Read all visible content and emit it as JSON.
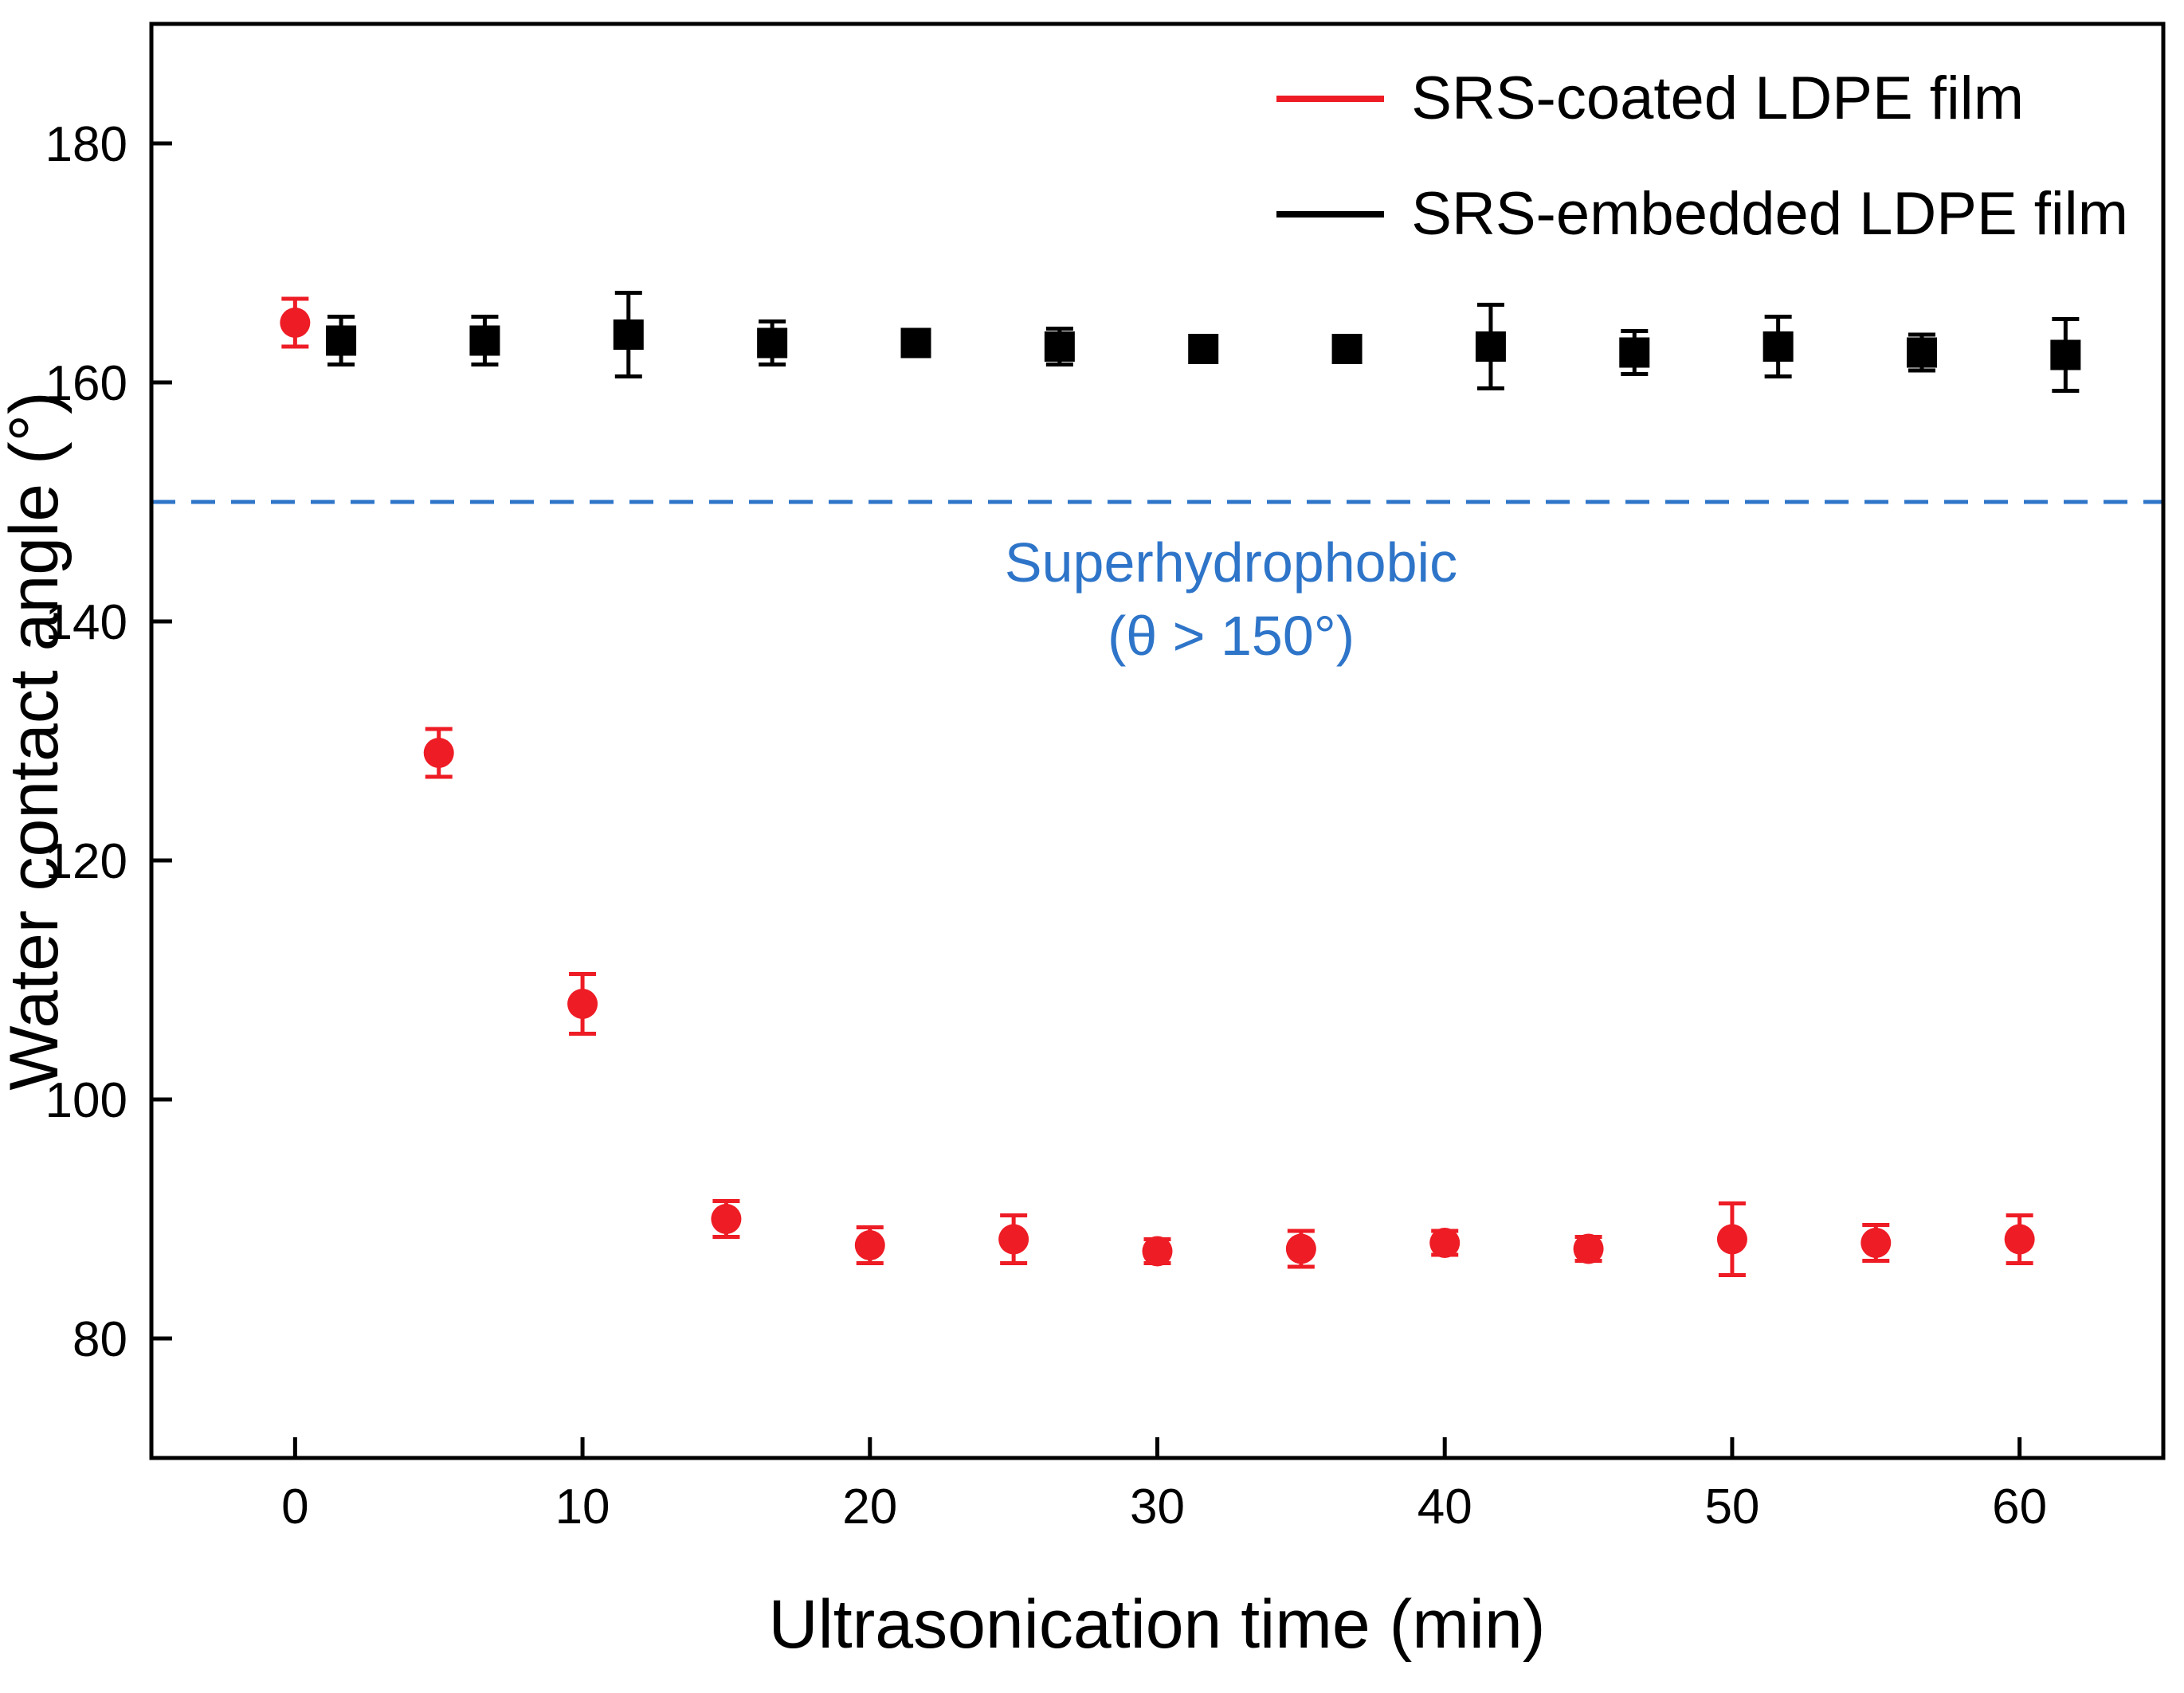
{
  "chart_data": {
    "type": "scatter",
    "title": "",
    "xlabel": "Ultrasonication time (min)",
    "ylabel": "Water contact angle (°)",
    "xlim": [
      -5,
      65
    ],
    "ylim": [
      70,
      190
    ],
    "xticks": [
      0,
      10,
      20,
      30,
      40,
      50,
      60
    ],
    "yticks": [
      80,
      100,
      120,
      140,
      160,
      180
    ],
    "grid": false,
    "legend_position": "top-right",
    "x": [
      0,
      5,
      10,
      15,
      20,
      25,
      30,
      35,
      40,
      45,
      50,
      55,
      60
    ],
    "series": [
      {
        "name": "SRS-coated LDPE film",
        "color": "#ee1c25",
        "marker": "circle",
        "x_offset": 0,
        "values": [
          165,
          129,
          108,
          90,
          87.8,
          88.3,
          87.3,
          87.5,
          88,
          87.5,
          88.3,
          88,
          88.3
        ],
        "errors": [
          2,
          2,
          2.5,
          1.5,
          1.5,
          2,
          1,
          1.5,
          1,
          1,
          3,
          1.5,
          2
        ]
      },
      {
        "name": "SRS-embedded LDPE film",
        "color": "#000000",
        "marker": "square",
        "x_offset": 1.6,
        "values": [
          163.5,
          163.5,
          164,
          163.3,
          163.3,
          163,
          162.8,
          162.8,
          163,
          162.5,
          163,
          162.5,
          162.3
        ],
        "errors": [
          2,
          2,
          3.5,
          1.8,
          0.9,
          1.5,
          1,
          0.9,
          3.5,
          1.8,
          2.5,
          1.5,
          3
        ]
      }
    ],
    "reference_line": {
      "y": 150,
      "color": "#2e75c9",
      "style": "dashed"
    },
    "annotation": {
      "line1": "Superhydrophobic",
      "line2": "(θ > 150°)",
      "color": "#2e75c9"
    }
  }
}
